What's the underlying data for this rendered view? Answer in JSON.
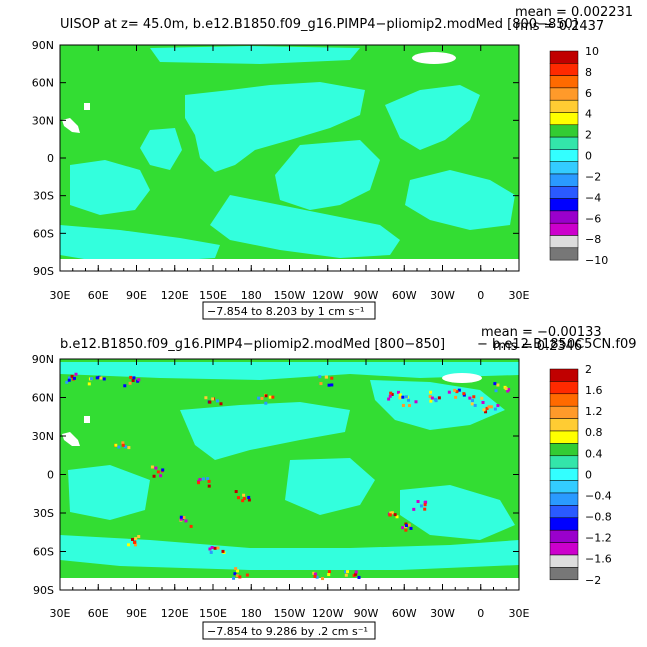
{
  "chart_data": [
    {
      "type": "heatmap",
      "title": "UISOP at z=   45.0m, b.e12.B1850.f09_g16.PIMP4−pliomip2.modMed [800−850]",
      "stats": {
        "mean": "mean = 0.002231",
        "rms": "rms = 0.2437"
      },
      "x_ticks": [
        "30E",
        "60E",
        "90E",
        "120E",
        "150E",
        "180",
        "150W",
        "120W",
        "90W",
        "60W",
        "30W",
        "0",
        "30E"
      ],
      "y_ticks": [
        "90N",
        "60N",
        "30N",
        "0",
        "30S",
        "60S",
        "90S"
      ],
      "contour_info": "−7.854 to 8.203 by 1 cm s⁻¹",
      "colorbar": {
        "labels": [
          "10",
          "8",
          "6",
          "4",
          "2",
          "0",
          "−2",
          "−4",
          "−6",
          "−8",
          "−10"
        ],
        "colors": [
          "#c00000",
          "#ff2a00",
          "#ff6a00",
          "#ff9a2a",
          "#ffcc33",
          "#ffff00",
          "#33cc33",
          "#33e5aa",
          "#33ffff",
          "#33ccff",
          "#2a9aff",
          "#2a5aff",
          "#0000ff",
          "#9a00cc",
          "#cc00cc",
          "#dddddd",
          "#777777"
        ]
      },
      "field": {
        "background": "#33dd33",
        "secondary": "#33ffdd",
        "missing": "#ffffff"
      }
    },
    {
      "type": "heatmap",
      "title": "b.e12.B1850.f09_g16.PIMP4−pliomip2.modMed [800−850]",
      "title_right": "− b.e12.B1850C5CN.f09",
      "stats": {
        "mean": "mean = −0.00133",
        "rms": "rms = 0.2346"
      },
      "x_ticks": [
        "30E",
        "60E",
        "90E",
        "120E",
        "150E",
        "180",
        "150W",
        "120W",
        "90W",
        "60W",
        "30W",
        "0",
        "30E"
      ],
      "y_ticks": [
        "90N",
        "60N",
        "30N",
        "0",
        "30S",
        "60S",
        "90S"
      ],
      "contour_info": "−7.854 to 9.286 by .2 cm s⁻¹",
      "colorbar": {
        "labels": [
          "2",
          "1.6",
          "1.2",
          "0.8",
          "0.4",
          "0",
          "−0.4",
          "−0.8",
          "−1.2",
          "−1.6",
          "−2"
        ],
        "colors": [
          "#c00000",
          "#ff2a00",
          "#ff6a00",
          "#ff9a2a",
          "#ffcc33",
          "#ffff00",
          "#33cc33",
          "#33e5aa",
          "#33ffff",
          "#33ccff",
          "#2a9aff",
          "#2a5aff",
          "#0000ff",
          "#9a00cc",
          "#cc00cc",
          "#dddddd",
          "#777777"
        ]
      },
      "field": {
        "background": "#33dd33",
        "secondary": "#33ffdd",
        "missing": "#ffffff"
      }
    }
  ]
}
